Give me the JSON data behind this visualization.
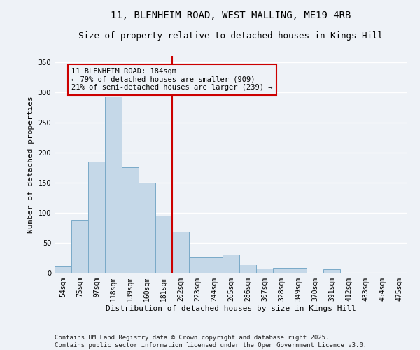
{
  "title_line1": "11, BLENHEIM ROAD, WEST MALLING, ME19 4RB",
  "title_line2": "Size of property relative to detached houses in Kings Hill",
  "xlabel": "Distribution of detached houses by size in Kings Hill",
  "ylabel": "Number of detached properties",
  "footer": "Contains HM Land Registry data © Crown copyright and database right 2025.\nContains public sector information licensed under the Open Government Licence v3.0.",
  "bins": [
    "54sqm",
    "75sqm",
    "97sqm",
    "118sqm",
    "139sqm",
    "160sqm",
    "181sqm",
    "202sqm",
    "223sqm",
    "244sqm",
    "265sqm",
    "286sqm",
    "307sqm",
    "328sqm",
    "349sqm",
    "370sqm",
    "391sqm",
    "412sqm",
    "433sqm",
    "454sqm",
    "475sqm"
  ],
  "values": [
    12,
    88,
    185,
    293,
    175,
    150,
    95,
    68,
    27,
    27,
    30,
    14,
    7,
    8,
    8,
    0,
    6,
    0,
    0,
    0,
    0
  ],
  "bar_color": "#c5d8e8",
  "bar_edge_color": "#7aaac8",
  "vline_x_index": 6.5,
  "vline_color": "#cc0000",
  "annotation_text": "11 BLENHEIM ROAD: 184sqm\n← 79% of detached houses are smaller (909)\n21% of semi-detached houses are larger (239) →",
  "annotation_box_color": "#cc0000",
  "ylim": [
    0,
    360
  ],
  "yticks": [
    0,
    50,
    100,
    150,
    200,
    250,
    300,
    350
  ],
  "background_color": "#eef2f7",
  "grid_color": "#ffffff",
  "title_fontsize": 10,
  "subtitle_fontsize": 9,
  "axis_label_fontsize": 8,
  "tick_fontsize": 7,
  "footer_fontsize": 6.5,
  "annotation_fontsize": 7.5
}
